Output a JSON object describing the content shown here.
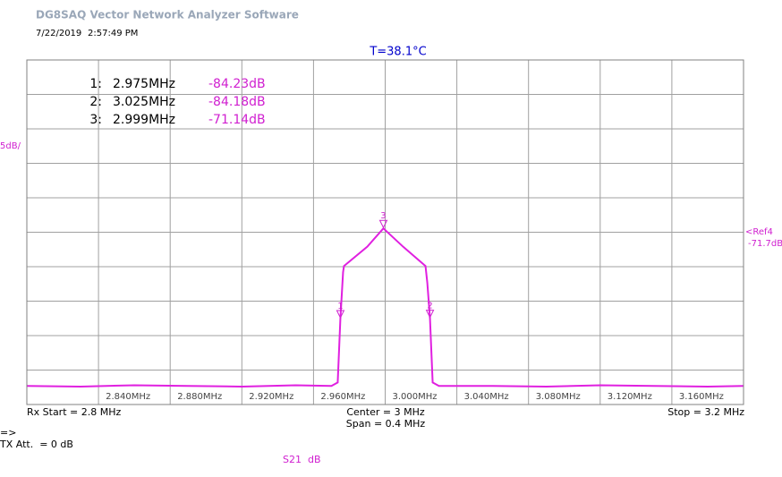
{
  "window": {
    "app_title": "DG8SAQ Vector Network Analyzer Software",
    "date": "7/22/2019",
    "time": "2:57:49 PM",
    "arrow": "=>",
    "tx_att": "TX Att.  = 0 dB",
    "trace_name": "S21  dB"
  },
  "chart_data": {
    "type": "line",
    "title": "T=38.1°C",
    "scale_label": "5dB/",
    "ref_label": "<Ref4",
    "ref_value_label": "-71.7dB",
    "start_label": "Rx Start = 2.8 MHz",
    "center_label": "Center = 3 MHz",
    "span_label": "Span = 0.4 MHz",
    "stop_label": "Stop = 3.2 MHz",
    "xlim": [
      2.8,
      3.2
    ],
    "xticks": [
      2.8,
      {
        "value": 2.84,
        "label": "2.840MHz"
      },
      {
        "value": 2.88,
        "label": "2.880MHz"
      },
      {
        "value": 2.92,
        "label": "2.920MHz"
      },
      {
        "value": 2.96,
        "label": "2.960MHz"
      },
      {
        "value": 3.0,
        "label": "3.000MHz"
      },
      {
        "value": 3.04,
        "label": "3.040MHz"
      },
      {
        "value": 3.08,
        "label": "3.080MHz"
      },
      {
        "value": 3.12,
        "label": "3.120MHz"
      },
      {
        "value": 3.16,
        "label": "3.160MHz"
      },
      3.2
    ],
    "ylim": [
      -96.7,
      -46.7
    ],
    "yticks": [
      -96.7,
      -91.7,
      -86.7,
      -81.7,
      -76.7,
      -71.7,
      -66.7,
      -61.7,
      -56.7,
      -51.7,
      -46.7
    ],
    "grid": true,
    "series": [
      {
        "name": "S21",
        "color": "#e020e0",
        "x": [
          2.8,
          2.83,
          2.86,
          2.89,
          2.92,
          2.95,
          2.97,
          2.9735,
          2.975,
          2.9765,
          2.977,
          2.99,
          2.999,
          3.01,
          3.0225,
          3.0235,
          3.025,
          3.0265,
          3.03,
          3.06,
          3.09,
          3.12,
          3.15,
          3.18,
          3.2
        ],
        "values": [
          -94.0,
          -94.1,
          -93.9,
          -94.0,
          -94.1,
          -93.9,
          -94.0,
          -93.5,
          -84.23,
          -77.5,
          -76.6,
          -73.8,
          -71.14,
          -73.8,
          -76.6,
          -79,
          -84.18,
          -93.5,
          -94.0,
          -94.0,
          -94.1,
          -93.9,
          -94.0,
          -94.1,
          -94.0
        ]
      }
    ],
    "markers": [
      {
        "index_label": "1:",
        "symbol": "1",
        "x": 2.975,
        "x_label": "2.975MHz",
        "y": -84.23,
        "y_label": "-84.23dB"
      },
      {
        "index_label": "2:",
        "symbol": "2",
        "x": 3.025,
        "x_label": "3.025MHz",
        "y": -84.18,
        "y_label": "-84.18dB"
      },
      {
        "index_label": "3:",
        "symbol": "3",
        "x": 2.999,
        "x_label": "2.999MHz",
        "y": -71.14,
        "y_label": "-71.14dB"
      }
    ]
  }
}
